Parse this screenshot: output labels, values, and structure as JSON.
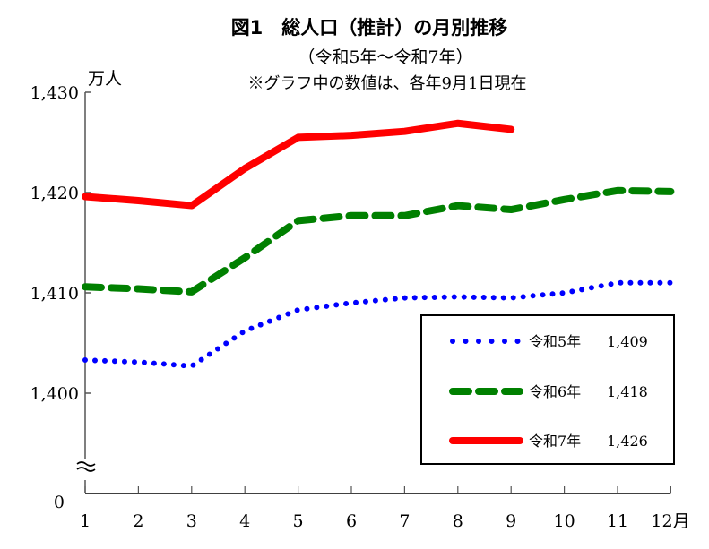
{
  "chart_data": {
    "type": "line",
    "title": "図1　総人口（推計）の月別推移",
    "subtitle": "（令和5年〜令和7年）",
    "note": "※グラフ中の数値は、各年9月1日現在",
    "ylabel": "万人",
    "xlabel": "",
    "x_unit_suffix": "月",
    "ylim": [
      1400,
      1430
    ],
    "y_axis_break": true,
    "y_ticks": [
      1400,
      1410,
      1420,
      1430
    ],
    "y_tick_labels": [
      "1,400",
      "1,410",
      "1,420",
      "1,430"
    ],
    "y_zero_label": "0",
    "categories": [
      "1",
      "2",
      "3",
      "4",
      "5",
      "6",
      "7",
      "8",
      "9",
      "10",
      "11",
      "12"
    ],
    "x_tick_labels": [
      "1",
      "2",
      "3",
      "4",
      "5",
      "6",
      "7",
      "8",
      "9",
      "10",
      "11",
      "12月"
    ],
    "grid": false,
    "legend_position": "bottom-right",
    "series": [
      {
        "name": "令和5年",
        "legend_value": "1,409",
        "color": "#0000ff",
        "style": "dotted",
        "values": [
          1403.3,
          1403.1,
          1402.7,
          1406.2,
          1408.3,
          1409.0,
          1409.5,
          1409.6,
          1409.5,
          1410.0,
          1411.0,
          1411.0
        ]
      },
      {
        "name": "令和6年",
        "legend_value": "1,418",
        "color": "#008000",
        "style": "dashed",
        "values": [
          1410.6,
          1410.4,
          1410.1,
          1413.5,
          1417.2,
          1417.7,
          1417.7,
          1418.7,
          1418.3,
          1419.3,
          1420.2,
          1420.1
        ]
      },
      {
        "name": "令和7年",
        "legend_value": "1,426",
        "color": "#ff0000",
        "style": "solid",
        "values": [
          1419.6,
          1419.2,
          1418.7,
          1422.4,
          1425.5,
          1425.7,
          1426.1,
          1426.9,
          1426.3,
          null,
          null,
          null
        ]
      }
    ]
  }
}
